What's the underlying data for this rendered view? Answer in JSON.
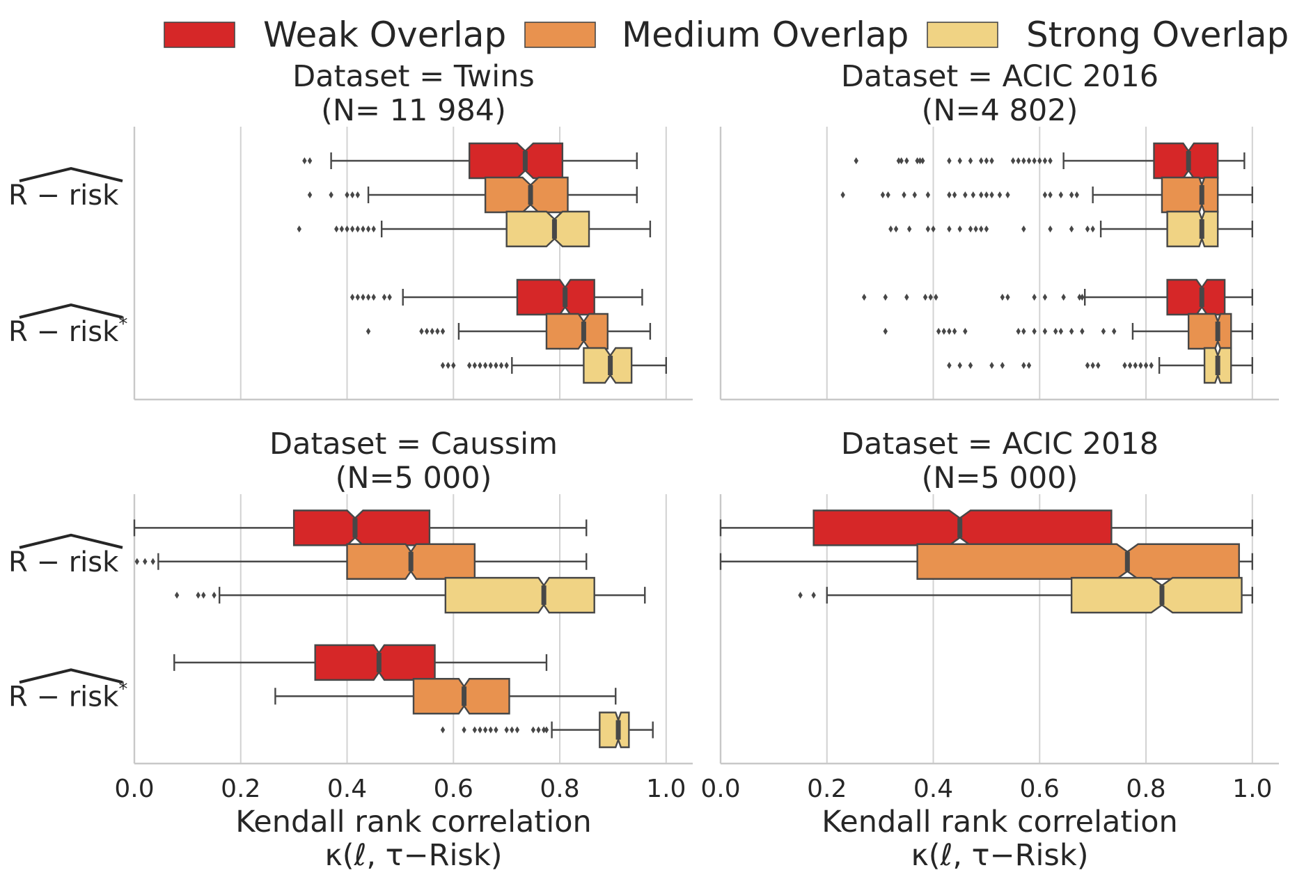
{
  "legend": {
    "items": [
      {
        "label": "Weak Overlap",
        "color": "#d62728"
      },
      {
        "label": "Medium Overlap",
        "color": "#e8924f"
      },
      {
        "label": "Strong Overlap",
        "color": "#f0d384"
      }
    ]
  },
  "colors": {
    "weak": "#d62728",
    "medium": "#e8924f",
    "strong": "#f0d384",
    "edge": "#474747",
    "grid": "#d2d2d2",
    "axis": "#c8c8c8"
  },
  "chart_data": [
    {
      "type": "boxplot",
      "orientation": "horizontal",
      "notched": true,
      "title_line1": "Dataset = Twins",
      "title_line2": "(N= 11 984)",
      "xlabel_line1": "Kendall rank correlation",
      "xlabel_line2": "κ(ℓ, τ−Risk)",
      "xlim": [
        0.0,
        1.05
      ],
      "xticks": [
        "0.0",
        "0.2",
        "0.4",
        "0.6",
        "0.8",
        "1.0"
      ],
      "show_xticks": false,
      "grid": "vertical",
      "categories": [
        "R − risk",
        "R − risk*"
      ],
      "series": [
        {
          "group": 0,
          "overlap": "Weak Overlap",
          "whislo": 0.37,
          "q1": 0.63,
          "med": 0.735,
          "q3": 0.805,
          "whishi": 0.945,
          "notch": [
            0.72,
            0.75
          ],
          "fliers": [
            0.32,
            0.33
          ]
        },
        {
          "group": 0,
          "overlap": "Medium Overlap",
          "whislo": 0.44,
          "q1": 0.66,
          "med": 0.745,
          "q3": 0.815,
          "whishi": 0.945,
          "notch": [
            0.73,
            0.76
          ],
          "fliers": [
            0.33,
            0.37,
            0.4,
            0.41,
            0.42
          ]
        },
        {
          "group": 0,
          "overlap": "Strong Overlap",
          "whislo": 0.465,
          "q1": 0.7,
          "med": 0.79,
          "q3": 0.855,
          "whishi": 0.97,
          "notch": [
            0.775,
            0.805
          ],
          "fliers": [
            0.31,
            0.38,
            0.39,
            0.4,
            0.41,
            0.42,
            0.43,
            0.44,
            0.45
          ]
        },
        {
          "group": 1,
          "overlap": "Weak Overlap",
          "whislo": 0.505,
          "q1": 0.72,
          "med": 0.81,
          "q3": 0.865,
          "whishi": 0.955,
          "notch": [
            0.8,
            0.82
          ],
          "fliers": [
            0.41,
            0.42,
            0.43,
            0.44,
            0.45,
            0.47,
            0.48
          ]
        },
        {
          "group": 1,
          "overlap": "Medium Overlap",
          "whislo": 0.61,
          "q1": 0.775,
          "med": 0.845,
          "q3": 0.89,
          "whishi": 0.97,
          "notch": [
            0.835,
            0.855
          ],
          "fliers": [
            0.44,
            0.54,
            0.55,
            0.56,
            0.57,
            0.58
          ]
        },
        {
          "group": 1,
          "overlap": "Strong Overlap",
          "whislo": 0.71,
          "q1": 0.845,
          "med": 0.895,
          "q3": 0.935,
          "whishi": 1.0,
          "notch": [
            0.885,
            0.905
          ],
          "fliers": [
            0.58,
            0.59,
            0.6,
            0.63,
            0.64,
            0.65,
            0.66,
            0.67,
            0.68,
            0.69,
            0.7
          ]
        }
      ]
    },
    {
      "type": "boxplot",
      "orientation": "horizontal",
      "notched": true,
      "title_line1": "Dataset = ACIC 2016",
      "title_line2": "(N=4 802)",
      "xlabel_line1": "Kendall rank correlation",
      "xlabel_line2": "κ(ℓ, τ−Risk)",
      "xlim": [
        0.0,
        1.05
      ],
      "xticks": [
        "0.0",
        "0.2",
        "0.4",
        "0.6",
        "0.8",
        "1.0"
      ],
      "show_xticks": false,
      "grid": "vertical",
      "categories": [
        "R − risk",
        "R − risk*"
      ],
      "series": [
        {
          "group": 0,
          "overlap": "Weak Overlap",
          "whislo": 0.645,
          "q1": 0.815,
          "med": 0.88,
          "q3": 0.935,
          "whishi": 0.985,
          "notch": [
            0.87,
            0.89
          ],
          "fliers": [
            0.255,
            0.335,
            0.34,
            0.35,
            0.37,
            0.375,
            0.38,
            0.43,
            0.45,
            0.47,
            0.49,
            0.5,
            0.51,
            0.55,
            0.56,
            0.57,
            0.58,
            0.59,
            0.6,
            0.61,
            0.62
          ]
        },
        {
          "group": 0,
          "overlap": "Medium Overlap",
          "whislo": 0.7,
          "q1": 0.83,
          "med": 0.905,
          "q3": 0.935,
          "whishi": 1.0,
          "notch": [
            0.9,
            0.91
          ],
          "fliers": [
            0.23,
            0.305,
            0.315,
            0.345,
            0.365,
            0.39,
            0.43,
            0.44,
            0.46,
            0.475,
            0.49,
            0.5,
            0.51,
            0.525,
            0.54,
            0.61,
            0.62,
            0.64,
            0.66,
            0.67
          ]
        },
        {
          "group": 0,
          "overlap": "Strong Overlap",
          "whislo": 0.715,
          "q1": 0.84,
          "med": 0.905,
          "q3": 0.935,
          "whishi": 1.0,
          "notch": [
            0.9,
            0.91
          ],
          "fliers": [
            0.32,
            0.33,
            0.355,
            0.39,
            0.4,
            0.43,
            0.45,
            0.47,
            0.48,
            0.49,
            0.5,
            0.57,
            0.62,
            0.66,
            0.69,
            0.7
          ]
        },
        {
          "group": 1,
          "overlap": "Weak Overlap",
          "whislo": 0.685,
          "q1": 0.84,
          "med": 0.905,
          "q3": 0.948,
          "whishi": 1.0,
          "notch": [
            0.895,
            0.915
          ],
          "fliers": [
            0.27,
            0.31,
            0.35,
            0.385,
            0.395,
            0.405,
            0.53,
            0.54,
            0.59,
            0.61,
            0.645,
            0.675,
            0.68
          ]
        },
        {
          "group": 1,
          "overlap": "Medium Overlap",
          "whislo": 0.775,
          "q1": 0.88,
          "med": 0.935,
          "q3": 0.96,
          "whishi": 1.0,
          "notch": [
            0.93,
            0.94
          ],
          "fliers": [
            0.31,
            0.41,
            0.42,
            0.43,
            0.44,
            0.46,
            0.56,
            0.57,
            0.59,
            0.61,
            0.63,
            0.64,
            0.66,
            0.68,
            0.72,
            0.74
          ]
        },
        {
          "group": 1,
          "overlap": "Strong Overlap",
          "whislo": 0.825,
          "q1": 0.91,
          "med": 0.935,
          "q3": 0.96,
          "whishi": 1.0,
          "notch": [
            0.93,
            0.94
          ],
          "fliers": [
            0.43,
            0.45,
            0.47,
            0.51,
            0.53,
            0.57,
            0.58,
            0.69,
            0.7,
            0.71,
            0.76,
            0.77,
            0.78,
            0.79,
            0.8,
            0.81
          ]
        }
      ]
    },
    {
      "type": "boxplot",
      "orientation": "horizontal",
      "notched": true,
      "title_line1": "Dataset = Caussim",
      "title_line2": "(N=5 000)",
      "xlabel_line1": "Kendall rank correlation",
      "xlabel_line2": "κ(ℓ, τ−Risk)",
      "xlim": [
        0.0,
        1.05
      ],
      "xticks": [
        "0.0",
        "0.2",
        "0.4",
        "0.6",
        "0.8",
        "1.0"
      ],
      "show_xticks": true,
      "grid": "vertical",
      "categories": [
        "R − risk",
        "R − risk*"
      ],
      "series": [
        {
          "group": 0,
          "overlap": "Weak Overlap",
          "whislo": 0.0,
          "q1": 0.3,
          "med": 0.415,
          "q3": 0.555,
          "whishi": 0.85,
          "notch": [
            0.4,
            0.43
          ],
          "fliers": []
        },
        {
          "group": 0,
          "overlap": "Medium Overlap",
          "whislo": 0.045,
          "q1": 0.4,
          "med": 0.52,
          "q3": 0.64,
          "whishi": 0.85,
          "notch": [
            0.51,
            0.53
          ],
          "fliers": [
            0.005,
            0.02,
            0.035
          ]
        },
        {
          "group": 0,
          "overlap": "Strong Overlap",
          "whislo": 0.16,
          "q1": 0.585,
          "med": 0.77,
          "q3": 0.865,
          "whishi": 0.96,
          "notch": [
            0.76,
            0.78
          ],
          "fliers": [
            0.08,
            0.12,
            0.13,
            0.15
          ]
        },
        {
          "group": 1,
          "overlap": "Weak Overlap",
          "whislo": 0.075,
          "q1": 0.34,
          "med": 0.46,
          "q3": 0.565,
          "whishi": 0.775,
          "notch": [
            0.45,
            0.47
          ],
          "fliers": []
        },
        {
          "group": 1,
          "overlap": "Medium Overlap",
          "whislo": 0.265,
          "q1": 0.525,
          "med": 0.62,
          "q3": 0.705,
          "whishi": 0.905,
          "notch": [
            0.61,
            0.63
          ],
          "fliers": []
        },
        {
          "group": 1,
          "overlap": "Strong Overlap",
          "whislo": 0.785,
          "q1": 0.875,
          "med": 0.91,
          "q3": 0.93,
          "whishi": 0.975,
          "notch": [
            0.905,
            0.915
          ],
          "fliers": [
            0.58,
            0.62,
            0.64,
            0.65,
            0.66,
            0.67,
            0.68,
            0.7,
            0.71,
            0.72,
            0.75,
            0.76,
            0.77,
            0.775
          ]
        }
      ]
    },
    {
      "type": "boxplot",
      "orientation": "horizontal",
      "notched": true,
      "title_line1": "Dataset = ACIC 2018",
      "title_line2": "(N=5 000)",
      "xlabel_line1": "Kendall rank correlation",
      "xlabel_line2": "κ(ℓ, τ−Risk)",
      "xlim": [
        0.0,
        1.05
      ],
      "xticks": [
        "0.0",
        "0.2",
        "0.4",
        "0.6",
        "0.8",
        "1.0"
      ],
      "show_xticks": true,
      "grid": "vertical",
      "categories": [
        "R − risk",
        "R − risk*"
      ],
      "series": [
        {
          "group": 0,
          "overlap": "Weak Overlap",
          "whislo": 0.0,
          "q1": 0.175,
          "med": 0.45,
          "q3": 0.735,
          "whishi": 1.0,
          "notch": [
            0.43,
            0.47
          ],
          "fliers": []
        },
        {
          "group": 0,
          "overlap": "Medium Overlap",
          "whislo": 0.0,
          "q1": 0.37,
          "med": 0.765,
          "q3": 0.975,
          "whishi": 1.0,
          "notch": [
            0.745,
            0.785
          ],
          "fliers": []
        },
        {
          "group": 0,
          "overlap": "Strong Overlap",
          "whislo": 0.2,
          "q1": 0.66,
          "med": 0.83,
          "q3": 0.98,
          "whishi": 1.0,
          "notch": [
            0.81,
            0.85
          ],
          "fliers": [
            0.15,
            0.175
          ]
        }
      ]
    }
  ]
}
